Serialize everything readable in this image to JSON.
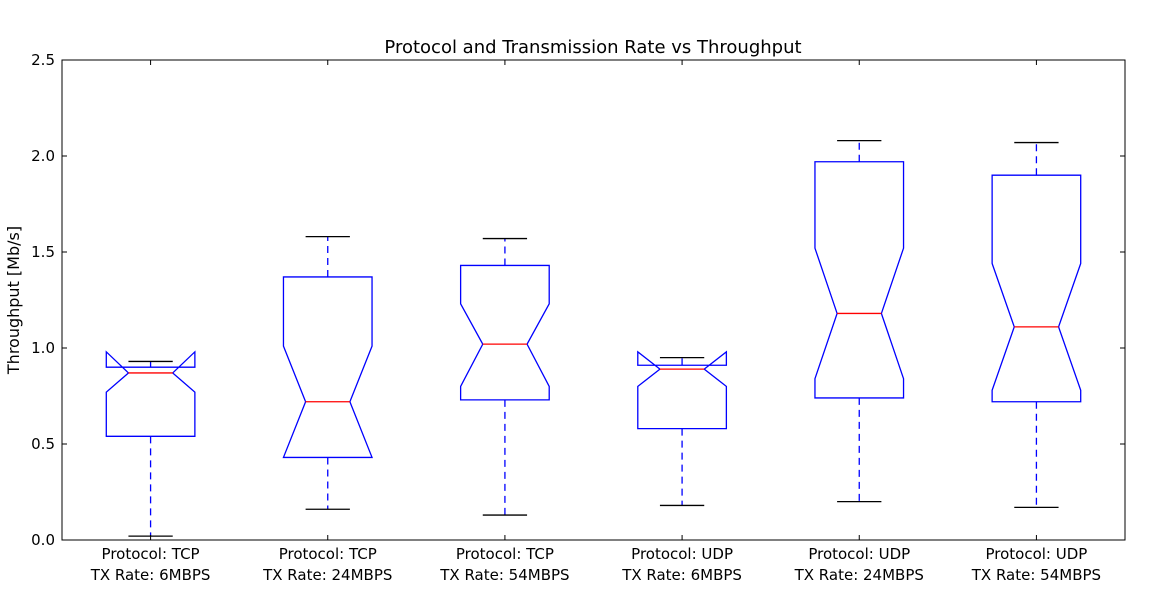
{
  "chart_data": {
    "type": "box",
    "title": "Protocol and Transmission Rate vs Throughput",
    "xlabel": "",
    "ylabel": "Throughput [Mb/s]",
    "ylim": [
      0.0,
      2.5
    ],
    "yticks": [
      "0.0",
      "0.5",
      "1.0",
      "1.5",
      "2.0",
      "2.5"
    ],
    "notched": true,
    "grid": false,
    "colors": {
      "box": "#0000ff",
      "median": "#ff0000",
      "whisker": "#0000ff",
      "cap": "#000000"
    },
    "categories": [
      {
        "line1": "Protocol: TCP",
        "line2": "TX Rate: 6MBPS"
      },
      {
        "line1": "Protocol: TCP",
        "line2": "TX Rate: 24MBPS"
      },
      {
        "line1": "Protocol: TCP",
        "line2": "TX Rate: 54MBPS"
      },
      {
        "line1": "Protocol: UDP",
        "line2": "TX Rate: 6MBPS"
      },
      {
        "line1": "Protocol: UDP",
        "line2": "TX Rate: 24MBPS"
      },
      {
        "line1": "Protocol: UDP",
        "line2": "TX Rate: 54MBPS"
      }
    ],
    "boxes": [
      {
        "whislo": 0.02,
        "q1": 0.54,
        "med": 0.87,
        "q3": 0.9,
        "whishi": 0.93,
        "notch_lo": 0.77,
        "notch_hi": 0.98
      },
      {
        "whislo": 0.16,
        "q1": 0.43,
        "med": 0.72,
        "q3": 1.37,
        "whishi": 1.58,
        "notch_lo": 0.43,
        "notch_hi": 1.01
      },
      {
        "whislo": 0.13,
        "q1": 0.73,
        "med": 1.02,
        "q3": 1.43,
        "whishi": 1.57,
        "notch_lo": 0.8,
        "notch_hi": 1.23
      },
      {
        "whislo": 0.18,
        "q1": 0.58,
        "med": 0.89,
        "q3": 0.91,
        "whishi": 0.95,
        "notch_lo": 0.8,
        "notch_hi": 0.98
      },
      {
        "whislo": 0.2,
        "q1": 0.74,
        "med": 1.18,
        "q3": 1.97,
        "whishi": 2.08,
        "notch_lo": 0.84,
        "notch_hi": 1.52
      },
      {
        "whislo": 0.17,
        "q1": 0.72,
        "med": 1.11,
        "q3": 1.9,
        "whishi": 2.07,
        "notch_lo": 0.78,
        "notch_hi": 1.44
      }
    ]
  }
}
